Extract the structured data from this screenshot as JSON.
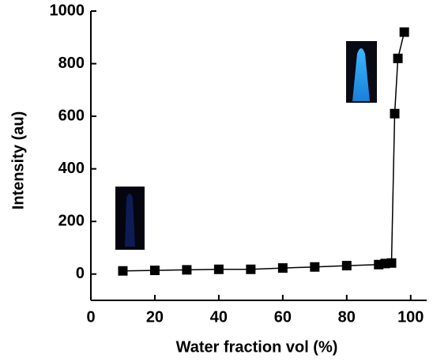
{
  "chart_data": {
    "type": "line",
    "x_label": "Water fraction vol (%)",
    "y_label": "Intensity (au)",
    "x": [
      10,
      20,
      30,
      40,
      50,
      60,
      70,
      80,
      90,
      92,
      94,
      95,
      96,
      98
    ],
    "series": [
      {
        "color": "#000000",
        "values": [
          12,
          14,
          16,
          18,
          18,
          23,
          27,
          32,
          36,
          40,
          42,
          610,
          820,
          920
        ]
      }
    ],
    "xlim": [
      0,
      105
    ],
    "xticks": [
      0,
      20,
      40,
      60,
      80,
      100
    ],
    "ylim": [
      -100,
      1000
    ],
    "yticks": [
      0,
      200,
      400,
      600,
      800,
      1000
    ]
  }
}
